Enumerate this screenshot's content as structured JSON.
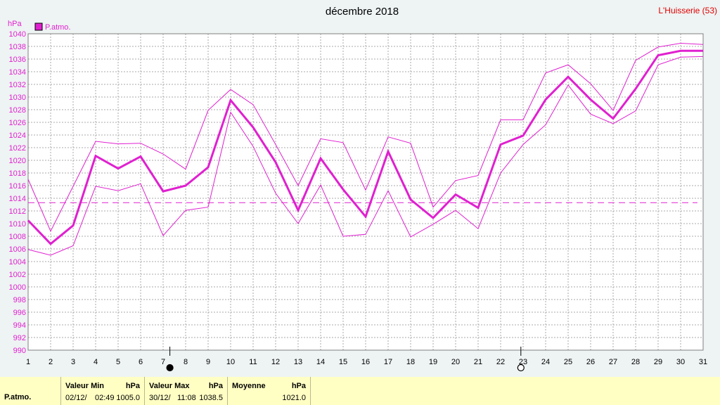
{
  "chart_data": {
    "type": "line",
    "title": "décembre 2018",
    "station": "L'Huisserie (53)",
    "ylabel": "hPa",
    "ylim": [
      990,
      1040
    ],
    "yticks": [
      990,
      992,
      994,
      996,
      998,
      1000,
      1002,
      1004,
      1006,
      1008,
      1010,
      1012,
      1014,
      1016,
      1018,
      1020,
      1022,
      1024,
      1026,
      1028,
      1030,
      1032,
      1034,
      1036,
      1038,
      1040
    ],
    "xlim": [
      1,
      31
    ],
    "x": [
      1,
      2,
      3,
      4,
      5,
      6,
      7,
      8,
      9,
      10,
      11,
      12,
      13,
      14,
      15,
      16,
      17,
      18,
      19,
      20,
      21,
      22,
      23,
      24,
      25,
      26,
      27,
      28,
      29,
      30,
      31
    ],
    "grid": true,
    "legend_position": "top-left",
    "series": [
      {
        "name": "P.atmo.",
        "color": "#e020d0",
        "values": [
          1010.5,
          1006.8,
          1009.7,
          1020.7,
          1018.7,
          1020.6,
          1015.1,
          1016.0,
          1018.9,
          1029.5,
          1025.2,
          1019.7,
          1012.1,
          1020.3,
          1015.4,
          1011.1,
          1021.4,
          1013.8,
          1010.9,
          1014.6,
          1012.5,
          1022.5,
          1023.9,
          1029.6,
          1033.2,
          1029.6,
          1026.6,
          1031.3,
          1036.6,
          1037.3,
          1037.3
        ],
        "max_values": [
          1017.0,
          1008.8,
          1015.9,
          1023.0,
          1022.6,
          1022.7,
          1021.0,
          1018.6,
          1027.9,
          1031.2,
          1028.8,
          1022.5,
          1016.0,
          1023.4,
          1022.8,
          1015.3,
          1023.7,
          1022.7,
          1012.6,
          1016.8,
          1017.6,
          1026.4,
          1026.4,
          1033.8,
          1035.1,
          1032.1,
          1027.9,
          1035.8,
          1037.9,
          1038.5,
          1038.3
        ],
        "min_values": [
          1005.9,
          1005.0,
          1006.5,
          1015.9,
          1015.2,
          1016.3,
          1008.1,
          1012.1,
          1012.6,
          1027.6,
          1022.2,
          1014.8,
          1010.0,
          1016.1,
          1008.0,
          1008.3,
          1015.2,
          1007.9,
          1009.9,
          1012.1,
          1009.2,
          1018.0,
          1022.5,
          1025.6,
          1031.9,
          1027.3,
          1025.8,
          1027.8,
          1035.1,
          1036.3,
          1036.4
        ]
      }
    ],
    "mean_line": 1013.3,
    "moon_phases": [
      {
        "x": 7.3,
        "phase": "new"
      },
      {
        "x": 22.9,
        "phase": "full"
      }
    ]
  },
  "footer": {
    "row_label": "P.atmo.",
    "min": {
      "header": "Valeur Min",
      "unit": "hPa",
      "date": "02/12/",
      "time": "02:49",
      "value": "1005.0"
    },
    "max": {
      "header": "Valeur Max",
      "unit": "hPa",
      "date": "30/12/",
      "time": "11:08",
      "value": "1038.5"
    },
    "avg": {
      "header": "Moyenne",
      "unit": "hPa",
      "value": "1021.0"
    }
  }
}
